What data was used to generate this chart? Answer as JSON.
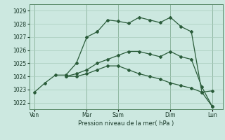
{
  "xlabel": "Pression niveau de la mer( hPa )",
  "bg_color": "#cce8e0",
  "line_color": "#2a5c3a",
  "grid_color": "#a8ccbc",
  "vline_color": "#5a8a6a",
  "ylim": [
    1021.5,
    1029.5
  ],
  "yticks": [
    1022,
    1023,
    1024,
    1025,
    1026,
    1027,
    1028,
    1029
  ],
  "x_day_labels": [
    "Ven",
    "",
    "Mar",
    "Sam",
    "",
    "Dim",
    "",
    "Lun"
  ],
  "x_day_positions": [
    0,
    3,
    5,
    8,
    10,
    13,
    15,
    17
  ],
  "x_vline_positions": [
    0,
    5,
    8,
    13,
    17
  ],
  "series1_x": [
    0,
    1,
    2,
    3,
    4,
    5,
    6,
    7,
    8,
    9,
    10,
    11,
    12,
    13,
    14,
    15,
    16,
    17
  ],
  "series1_y": [
    1022.8,
    1023.5,
    1024.1,
    1024.1,
    1025.0,
    1027.0,
    1027.4,
    1028.3,
    1028.2,
    1028.05,
    1028.5,
    1028.3,
    1028.1,
    1028.5,
    1027.8,
    1027.4,
    1022.8,
    1022.9
  ],
  "series2_x": [
    3,
    4,
    5,
    6,
    7,
    8,
    9,
    10,
    11,
    12,
    13,
    14,
    15,
    16,
    17
  ],
  "series2_y": [
    1024.0,
    1024.2,
    1024.5,
    1025.0,
    1025.3,
    1025.6,
    1025.9,
    1025.9,
    1025.7,
    1025.5,
    1025.9,
    1025.5,
    1025.3,
    1023.2,
    1021.7
  ],
  "series3_x": [
    3,
    4,
    5,
    6,
    7,
    8,
    9,
    10,
    11,
    12,
    13,
    14,
    15,
    16,
    17
  ],
  "series3_y": [
    1024.0,
    1024.0,
    1024.2,
    1024.5,
    1024.8,
    1024.8,
    1024.5,
    1024.2,
    1024.0,
    1023.8,
    1023.5,
    1023.3,
    1023.1,
    1022.8,
    1021.7
  ],
  "n_points": 18
}
